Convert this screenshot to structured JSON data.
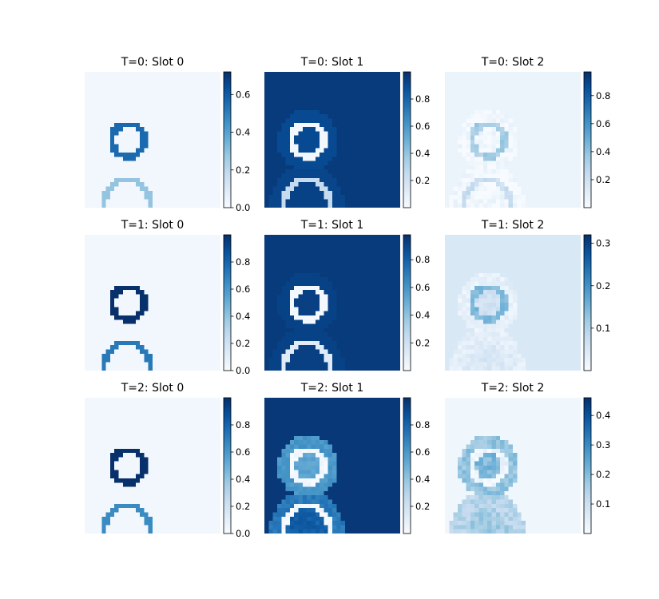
{
  "chart_data": {
    "type": "heatmap",
    "colormap": "Blues",
    "grid": false,
    "layout": {
      "rows": 3,
      "cols": 3,
      "legend": "colorbar-right-of-each-panel"
    },
    "panels": [
      {
        "title": "T=0: Slot 0",
        "background": 0.03,
        "ring1": 0.78,
        "ring2": 0.4,
        "fill1": 0.03,
        "fill2": 0.03,
        "halo": 0.03,
        "halo2": 0.03,
        "noise": 0.0,
        "colorbar": {
          "min": 0.0,
          "max": 0.72,
          "ticks": [
            0.0,
            0.2,
            0.4,
            0.6
          ],
          "tick_labels": [
            "0.0",
            "0.2",
            "0.4",
            "0.6"
          ]
        }
      },
      {
        "title": "T=0: Slot 1",
        "background": 0.96,
        "ring1": 0.02,
        "ring2": 0.25,
        "fill1": 0.9,
        "fill2": 0.93,
        "halo": 0.9,
        "halo2": 0.92,
        "noise": 0.0,
        "colorbar": {
          "min": 0.0,
          "max": 1.0,
          "ticks": [
            0.2,
            0.4,
            0.6,
            0.8
          ],
          "tick_labels": [
            "0.2",
            "0.4",
            "0.6",
            "0.8"
          ]
        }
      },
      {
        "title": "T=0: Slot 2",
        "background": 0.06,
        "ring1": 0.35,
        "ring2": 0.22,
        "fill1": 0.02,
        "fill2": 0.02,
        "halo": 0.02,
        "halo2": 0.02,
        "noise": 0.12,
        "colorbar": {
          "min": 0.0,
          "max": 0.97,
          "ticks": [
            0.2,
            0.4,
            0.6,
            0.8
          ],
          "tick_labels": [
            "0.2",
            "0.4",
            "0.6",
            "0.8"
          ]
        }
      },
      {
        "title": "T=1: Slot 0",
        "background": 0.03,
        "ring1": 1.0,
        "ring2": 0.72,
        "fill1": 0.03,
        "fill2": 0.03,
        "halo": 0.03,
        "halo2": 0.03,
        "noise": 0.0,
        "colorbar": {
          "min": 0.0,
          "max": 1.0,
          "ticks": [
            0.0,
            0.2,
            0.4,
            0.6,
            0.8
          ],
          "tick_labels": [
            "0.0",
            "0.2",
            "0.4",
            "0.6",
            "0.8"
          ]
        }
      },
      {
        "title": "T=1: Slot 1",
        "background": 0.96,
        "ring1": 0.02,
        "ring2": 0.12,
        "fill1": 0.94,
        "fill2": 0.94,
        "halo": 0.93,
        "halo2": 0.93,
        "noise": 0.0,
        "colorbar": {
          "min": 0.0,
          "max": 0.98,
          "ticks": [
            0.2,
            0.4,
            0.6,
            0.8
          ],
          "tick_labels": [
            "0.2",
            "0.4",
            "0.6",
            "0.8"
          ]
        }
      },
      {
        "title": "T=1: Slot 2",
        "background": 0.15,
        "ring1": 0.45,
        "ring2": 0.12,
        "fill1": 0.2,
        "fill2": 0.15,
        "halo": 0.08,
        "halo2": 0.1,
        "noise": 0.1,
        "colorbar": {
          "min": 0.0,
          "max": 0.32,
          "ticks": [
            0.1,
            0.2,
            0.3
          ],
          "tick_labels": [
            "0.1",
            "0.2",
            "0.3"
          ]
        }
      },
      {
        "title": "T=2: Slot 0",
        "background": 0.03,
        "ring1": 1.0,
        "ring2": 0.65,
        "fill1": 0.03,
        "fill2": 0.03,
        "halo": 0.03,
        "halo2": 0.03,
        "noise": 0.0,
        "colorbar": {
          "min": 0.0,
          "max": 1.0,
          "ticks": [
            0.0,
            0.2,
            0.4,
            0.6,
            0.8
          ],
          "tick_labels": [
            "0.0",
            "0.2",
            "0.4",
            "0.6",
            "0.8"
          ]
        }
      },
      {
        "title": "T=2: Slot 1",
        "background": 0.97,
        "ring1": 0.02,
        "ring2": 0.02,
        "fill1": 0.55,
        "fill2": 0.82,
        "halo": 0.6,
        "halo2": 0.72,
        "noise": 0.08,
        "colorbar": {
          "min": 0.0,
          "max": 1.0,
          "ticks": [
            0.2,
            0.4,
            0.6,
            0.8
          ],
          "tick_labels": [
            "0.2",
            "0.4",
            "0.6",
            "0.8"
          ]
        }
      },
      {
        "title": "T=2: Slot 2",
        "background": 0.04,
        "ring1": 0.05,
        "ring2": 0.3,
        "fill1": 0.45,
        "fill2": 0.35,
        "halo": 0.4,
        "halo2": 0.3,
        "noise": 0.15,
        "colorbar": {
          "min": 0.0,
          "max": 0.46,
          "ticks": [
            0.1,
            0.2,
            0.3,
            0.4
          ],
          "tick_labels": [
            "0.1",
            "0.2",
            "0.3",
            "0.4"
          ]
        }
      }
    ]
  }
}
